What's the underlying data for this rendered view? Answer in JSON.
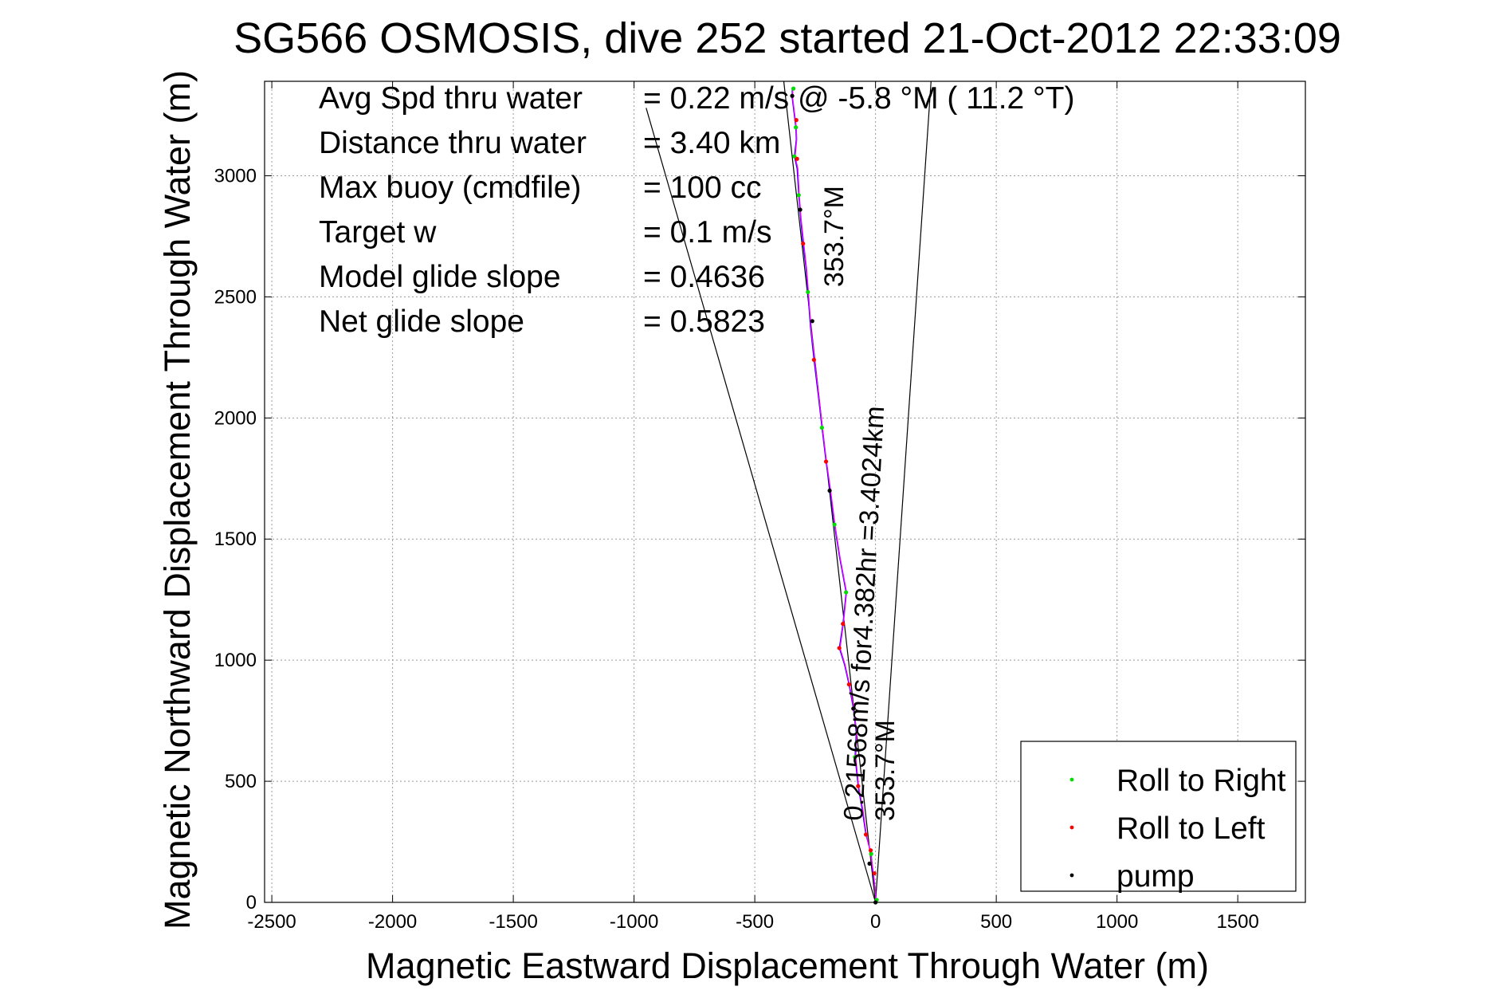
{
  "chart_data": {
    "type": "line",
    "title": "SG566 OSMOSIS, dive 252 started 21-Oct-2012 22:33:09",
    "xlabel": "Magnetic Eastward Displacement Through Water (m)",
    "ylabel": "Magnetic Northward Displacement Through Water (m)",
    "xlim": [
      -2530,
      1780
    ],
    "ylim": [
      0,
      3390
    ],
    "xticks": [
      -2500,
      -2000,
      -1500,
      -1000,
      -500,
      0,
      500,
      1000,
      1500
    ],
    "yticks": [
      0,
      500,
      1000,
      1500,
      2000,
      2500,
      3000
    ],
    "grid": true,
    "legend_position": "lower-right",
    "legend": [
      {
        "label": "Roll to Right",
        "color": "#00dd00"
      },
      {
        "label": "Roll to Left",
        "color": "#ff0000"
      },
      {
        "label": "pump",
        "color": "#000000"
      }
    ],
    "stats": [
      {
        "label": "Avg Spd thru water",
        "value": "=  0.22 m/s @  -5.8 °M ( 11.2 °T)"
      },
      {
        "label": "Distance thru water",
        "value": "=  3.40 km"
      },
      {
        "label": "Max buoy (cmdfile)",
        "value": "= 100 cc"
      },
      {
        "label": "Target w",
        "value": "= 0.1 m/s"
      },
      {
        "label": "Model glide slope",
        "value": "= 0.4636"
      },
      {
        "label": "Net glide slope",
        "value": "= 0.5823"
      }
    ],
    "annotations": {
      "track_summary": "0.21568m/s for4.382hr =3.4024km",
      "heading_far": "353.7°M",
      "heading_near": "353.7°M"
    },
    "series": [
      {
        "kind": "track",
        "color": "#0000ff",
        "x": [
          0,
          2,
          -5,
          -12,
          -18,
          -40,
          -55,
          -72,
          -85,
          -80,
          -92,
          -110,
          -128,
          -150,
          -135,
          -122,
          -150,
          -170,
          -188,
          -205,
          -222,
          -238,
          -255,
          -270,
          -280,
          -288,
          -300,
          -310,
          -318,
          -325,
          -336,
          -328,
          -330,
          -335,
          -340,
          -345,
          -345
        ],
        "y": [
          0,
          30,
          80,
          130,
          200,
          280,
          380,
          480,
          600,
          700,
          800,
          900,
          980,
          1050,
          1150,
          1280,
          1430,
          1560,
          1700,
          1820,
          1960,
          2100,
          2240,
          2380,
          2520,
          2620,
          2720,
          2820,
          2920,
          3030,
          3080,
          3150,
          3200,
          3240,
          3280,
          3320,
          3360
        ]
      },
      {
        "kind": "track",
        "color": "#ff00ff",
        "x": [
          0,
          1,
          -4,
          -10,
          -20,
          -38,
          -52,
          -70,
          -82,
          -78,
          -90,
          -108,
          -126,
          -147,
          -133,
          -120,
          -148,
          -168,
          -186,
          -203,
          -220,
          -236,
          -252,
          -268,
          -278,
          -286,
          -297,
          -308,
          -316,
          -322,
          -333,
          -326,
          -328,
          -333,
          -338,
          -343,
          -343
        ],
        "y": [
          0,
          30,
          80,
          130,
          200,
          280,
          380,
          480,
          600,
          700,
          800,
          900,
          980,
          1050,
          1150,
          1280,
          1430,
          1560,
          1700,
          1820,
          1960,
          2100,
          2240,
          2380,
          2520,
          2620,
          2720,
          2820,
          2920,
          3030,
          3080,
          3150,
          3200,
          3240,
          3280,
          3320,
          3360
        ]
      },
      {
        "kind": "reference_line",
        "color": "#000000",
        "x": [
          0,
          -950
        ],
        "y": [
          0,
          3280
        ]
      },
      {
        "kind": "reference_line",
        "color": "#000000",
        "x": [
          0,
          230
        ],
        "y": [
          0,
          3390
        ]
      },
      {
        "kind": "reference_line",
        "color": "#000000",
        "x": [
          0,
          -380
        ],
        "y": [
          0,
          3390
        ]
      }
    ],
    "markers": {
      "roll_right": {
        "color": "#00dd00",
        "x": [
          -340,
          -330,
          -336,
          -318,
          -280,
          -222,
          -170,
          -122,
          -85,
          -18,
          5
        ],
        "y": [
          3360,
          3200,
          3080,
          2920,
          2520,
          1960,
          1560,
          1280,
          600,
          200,
          10
        ]
      },
      "roll_left": {
        "color": "#ff0000",
        "x": [
          -328,
          -325,
          -300,
          -255,
          -205,
          -150,
          -135,
          -110,
          -72,
          -40,
          -20,
          -5
        ],
        "y": [
          3230,
          3070,
          2720,
          2240,
          1820,
          1050,
          1150,
          900,
          480,
          280,
          215,
          120
        ]
      },
      "pump": {
        "color": "#000000",
        "x": [
          -345,
          -312,
          -262,
          -190,
          -92,
          -25,
          0
        ],
        "y": [
          3330,
          2860,
          2400,
          1700,
          800,
          160,
          0
        ]
      }
    }
  }
}
